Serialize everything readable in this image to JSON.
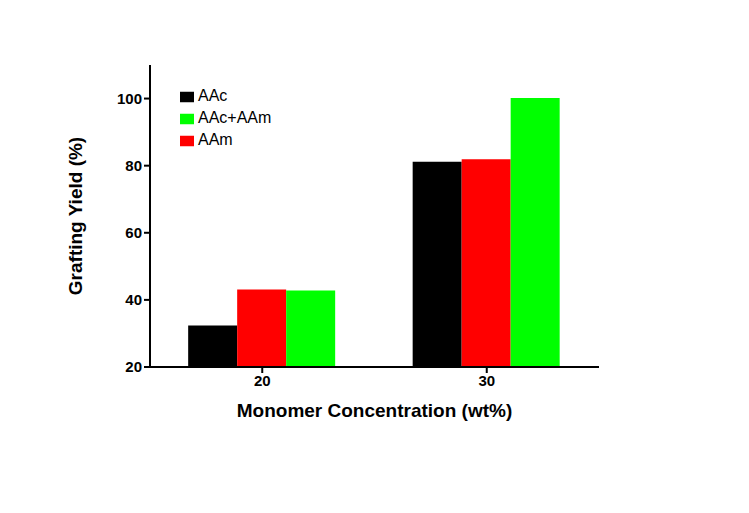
{
  "chart_data": {
    "type": "bar",
    "x_label": "Monomer Concentration (wt%)",
    "y_label": "Grafting Yield (%)",
    "categories": [
      "20",
      "30"
    ],
    "series": [
      {
        "name": "AAc",
        "color": "#000000",
        "values": [
          32.4,
          81.2
        ]
      },
      {
        "name": "AAm",
        "color": "#ff0000",
        "values": [
          43.1,
          81.9
        ]
      },
      {
        "name": "AAc+AAm",
        "color": "#00ff00",
        "values": [
          42.8,
          100.2
        ]
      }
    ],
    "ylim": [
      20,
      110
    ],
    "yticks": [
      20,
      40,
      60,
      80,
      100
    ],
    "legend": "upper left",
    "grid": false
  }
}
